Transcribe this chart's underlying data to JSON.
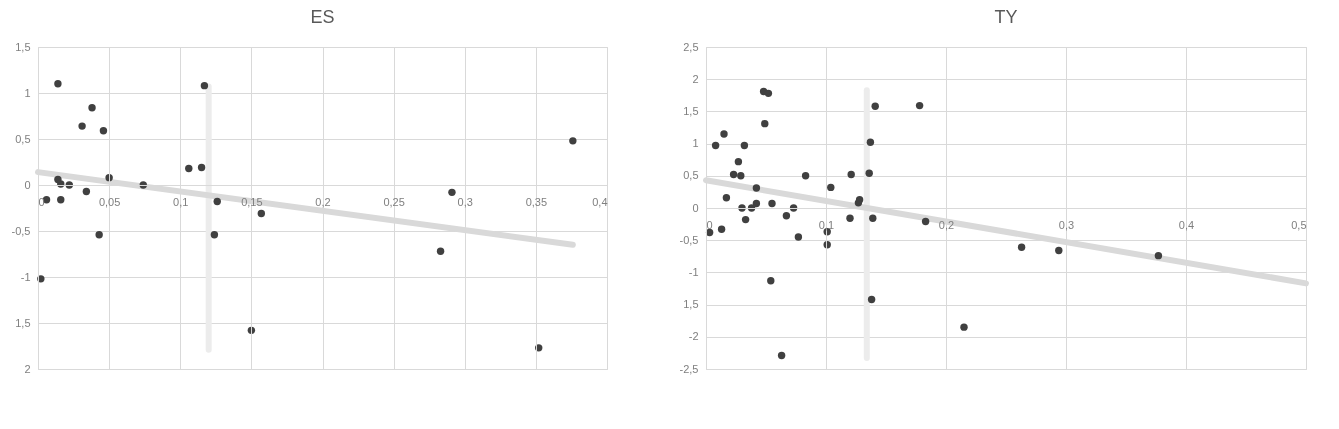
{
  "chart_data": [
    {
      "type": "scatter",
      "title": "ES",
      "grid": true,
      "xlim": [
        0,
        0.4
      ],
      "xticks": [
        0,
        {
          "value": 0.05,
          "label": "0,05"
        },
        {
          "value": 0.1,
          "label": "0,1"
        },
        {
          "value": 0.15,
          "label": "0,15"
        },
        {
          "value": 0.2,
          "label": "0,2"
        },
        {
          "value": 0.25,
          "label": "0,25"
        },
        {
          "value": 0.3,
          "label": "0,3"
        },
        {
          "value": 0.35,
          "label": "0,35"
        },
        {
          "value": 0.4,
          "label": "0,4"
        }
      ],
      "ylim": [
        -2,
        1.5
      ],
      "yticks": [
        {
          "value": -2,
          "label": "2"
        },
        {
          "value": -1.5,
          "label": "1,5"
        },
        -1,
        {
          "value": -0.5,
          "label": "-0,5"
        },
        0,
        {
          "value": 0.5,
          "label": "0,5"
        },
        1,
        {
          "value": 1.5,
          "label": "1,5"
        }
      ],
      "series": [
        {
          "type": "line",
          "color": "#ececec",
          "x": [
            0.12,
            0.12
          ],
          "values": [
            1.07,
            -1.79
          ]
        },
        {
          "type": "line",
          "color": "#d9d9d9",
          "x": [
            0,
            0.376
          ],
          "values": [
            0.14,
            -0.65
          ]
        },
        {
          "marker": "circle",
          "color": "#404040",
          "x": [
            0.014,
            0.117,
            0.038,
            0.031,
            0.046,
            0.106,
            0.115,
            0.05,
            0.014,
            0.016,
            0.022,
            0.074,
            0.034,
            0.006,
            0.016,
            0.126,
            0.157,
            0.043,
            0.124,
            0.002,
            0.15,
            0.376,
            0.291,
            0.283,
            0.352
          ],
          "values": [
            1.1,
            1.08,
            0.84,
            0.64,
            0.59,
            0.18,
            0.19,
            0.08,
            0.06,
            0.01,
            0.0,
            0.0,
            -0.07,
            -0.16,
            -0.16,
            -0.18,
            -0.31,
            -0.54,
            -0.54,
            -1.02,
            -1.58,
            0.48,
            -0.08,
            -0.72,
            -1.77
          ]
        }
      ]
    },
    {
      "type": "scatter",
      "title": "TY",
      "grid": true,
      "xlim": [
        0,
        0.5
      ],
      "xticks": [
        0,
        {
          "value": 0.1,
          "label": "0,1"
        },
        {
          "value": 0.2,
          "label": "0,2"
        },
        {
          "value": 0.3,
          "label": "0,3"
        },
        {
          "value": 0.4,
          "label": "0,4"
        },
        {
          "value": 0.5,
          "label": "0,5"
        }
      ],
      "ylim": [
        -2.5,
        2.5
      ],
      "yticks": [
        {
          "value": -2.5,
          "label": "-2,5"
        },
        -2,
        {
          "value": -1.5,
          "label": "1,5"
        },
        -1,
        {
          "value": -0.5,
          "label": "-0,5"
        },
        0,
        {
          "value": 0.5,
          "label": "0,5"
        },
        1,
        {
          "value": 1.5,
          "label": "1,5"
        },
        2,
        {
          "value": 2.5,
          "label": "2,5"
        }
      ],
      "series": [
        {
          "type": "line",
          "color": "#ececec",
          "x": [
            0.134,
            0.134
          ],
          "values": [
            1.83,
            -2.33
          ]
        },
        {
          "type": "line",
          "color": "#d9d9d9",
          "x": [
            0,
            0.5
          ],
          "values": [
            0.43,
            -1.17
          ]
        },
        {
          "marker": "circle",
          "color": "#404040",
          "x": [
            0.048,
            0.052,
            0.049,
            0.015,
            0.008,
            0.032,
            0.027,
            0.023,
            0.029,
            0.042,
            0.017,
            0.042,
            0.03,
            0.038,
            0.055,
            0.033,
            0.013,
            0.003,
            0.067,
            0.073,
            0.077,
            0.083,
            0.101,
            0.101,
            0.104,
            0.12,
            0.121,
            0.128,
            0.127,
            0.136,
            0.137,
            0.141,
            0.178,
            0.139,
            0.183,
            0.138,
            0.054,
            0.063,
            0.215,
            0.263,
            0.294,
            0.377
          ],
          "values": [
            1.81,
            1.78,
            1.31,
            1.15,
            0.97,
            0.97,
            0.72,
            0.52,
            0.5,
            0.31,
            0.16,
            0.07,
            0.0,
            0.0,
            0.07,
            -0.18,
            -0.33,
            -0.38,
            -0.12,
            0.0,
            -0.45,
            0.5,
            -0.37,
            -0.57,
            0.32,
            -0.16,
            0.52,
            0.13,
            0.08,
            0.54,
            1.02,
            1.58,
            1.59,
            -0.16,
            -0.21,
            -1.42,
            -1.13,
            -2.29,
            -1.85,
            -0.61,
            -0.66,
            -0.74
          ]
        }
      ]
    }
  ]
}
